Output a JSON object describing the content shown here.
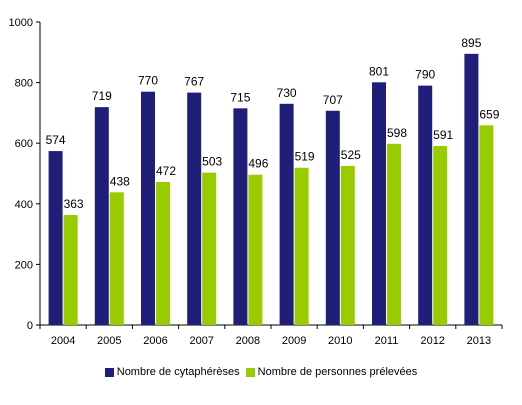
{
  "chart_data": {
    "type": "bar",
    "categories": [
      "2004",
      "2005",
      "2006",
      "2007",
      "2008",
      "2009",
      "2010",
      "2011",
      "2012",
      "2013"
    ],
    "series": [
      {
        "name": "Nombre de cytaphérèses",
        "values": [
          574,
          719,
          770,
          767,
          715,
          730,
          707,
          801,
          790,
          895
        ],
        "color": "#1f1f7a"
      },
      {
        "name": "Nombre de personnes prélevées",
        "values": [
          363,
          438,
          472,
          503,
          496,
          519,
          525,
          598,
          591,
          659
        ],
        "color": "#99cc00"
      }
    ],
    "ylim": [
      0,
      1000
    ],
    "yticks": [
      0,
      200,
      400,
      600,
      800,
      1000
    ],
    "grid": false,
    "legend_position": "bottom",
    "title": "",
    "xlabel": "",
    "ylabel": ""
  }
}
